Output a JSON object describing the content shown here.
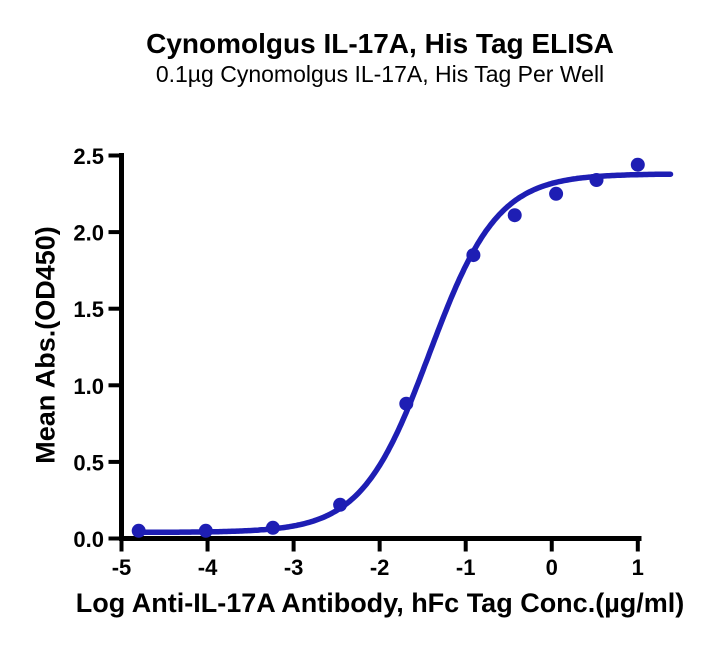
{
  "chart_data": {
    "type": "scatter",
    "title": "Cynomolgus IL-17A, His Tag ELISA",
    "subtitle": "0.1µg Cynomolgus IL-17A, His Tag Per Well",
    "xlabel": "Log Anti-IL-17A Antibody, hFc Tag Conc.(µg/ml)",
    "ylabel": "Mean Abs.(OD450)",
    "x": [
      -4.8,
      -4.02,
      -3.24,
      -2.46,
      -1.69,
      -0.91,
      -0.43,
      0.05,
      0.52,
      1.0
    ],
    "y": [
      0.05,
      0.05,
      0.07,
      0.22,
      0.88,
      1.85,
      2.11,
      2.25,
      2.34,
      2.44
    ],
    "xlim": [
      -5,
      1
    ],
    "ylim": [
      0,
      2.5
    ],
    "x_ticks": [
      -5,
      -4,
      -3,
      -2,
      -1,
      0,
      1
    ],
    "x_tick_labels": [
      "-5",
      "-4",
      "-3",
      "-2",
      "-1",
      "0",
      "1"
    ],
    "y_ticks": [
      0,
      0.5,
      1,
      1.5,
      2,
      2.5
    ],
    "y_tick_labels": [
      "0.0",
      "0.5",
      "1.0",
      "1.5",
      "2.0",
      "2.5"
    ],
    "fit_curve": {
      "model": "4PL-sigmoid",
      "bottom": 0.04,
      "top": 2.38,
      "logEC50": -1.42,
      "hill": 1.1,
      "curve_x_range": [
        -4.8,
        1.38
      ]
    },
    "marker_color": "#1e1eb4",
    "line_color": "#1e1eb4",
    "axis_color": "#000000",
    "grid": false,
    "legend": null
  }
}
